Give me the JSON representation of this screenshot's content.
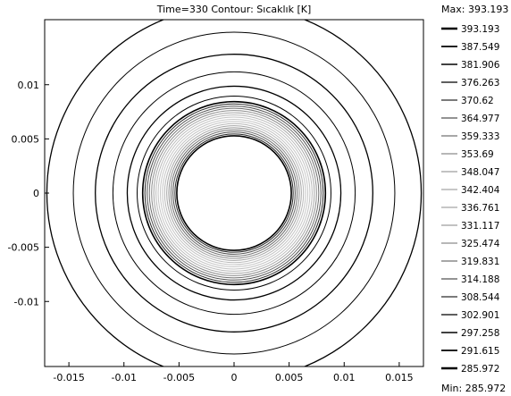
{
  "chart_data": {
    "type": "contour",
    "title": "Time=330    Contour: Sıcaklık [K]",
    "xlabel": "",
    "ylabel": "",
    "xlim": [
      -0.0172,
      0.0172
    ],
    "ylim": [
      -0.016,
      0.016
    ],
    "x_ticks": [
      {
        "value": -0.015,
        "label": "-0.015"
      },
      {
        "value": -0.01,
        "label": "-0.01"
      },
      {
        "value": -0.005,
        "label": "-0.005"
      },
      {
        "value": 0,
        "label": "0"
      },
      {
        "value": 0.005,
        "label": "0.005"
      },
      {
        "value": 0.01,
        "label": "0.01"
      },
      {
        "value": 0.015,
        "label": "0.015"
      }
    ],
    "y_ticks": [
      {
        "value": 0.01,
        "label": "0.01"
      },
      {
        "value": 0.005,
        "label": "0.005"
      },
      {
        "value": 0,
        "label": "0"
      },
      {
        "value": -0.005,
        "label": "-0.005"
      },
      {
        "value": -0.01,
        "label": "-0.01"
      }
    ],
    "grid": false,
    "max_label": "Max: 393.193",
    "min_label": "Min: 285.972",
    "legend_position": "right",
    "levels": [
      {
        "value": 393.193,
        "label": "393.193"
      },
      {
        "value": 387.549,
        "label": "387.549"
      },
      {
        "value": 381.906,
        "label": "381.906"
      },
      {
        "value": 376.263,
        "label": "376.263"
      },
      {
        "value": 370.62,
        "label": "370.62"
      },
      {
        "value": 364.977,
        "label": "364.977"
      },
      {
        "value": 359.333,
        "label": "359.333"
      },
      {
        "value": 353.69,
        "label": "353.69"
      },
      {
        "value": 348.047,
        "label": "348.047"
      },
      {
        "value": 342.404,
        "label": "342.404"
      },
      {
        "value": 336.761,
        "label": "336.761"
      },
      {
        "value": 331.117,
        "label": "331.117"
      },
      {
        "value": 325.474,
        "label": "325.474"
      },
      {
        "value": 319.831,
        "label": "319.831"
      },
      {
        "value": 314.188,
        "label": "314.188"
      },
      {
        "value": 308.544,
        "label": "308.544"
      },
      {
        "value": 302.901,
        "label": "302.901"
      },
      {
        "value": 297.258,
        "label": "297.258"
      },
      {
        "value": 291.615,
        "label": "291.615"
      },
      {
        "value": 285.972,
        "label": "285.972"
      }
    ],
    "inner_boundary_radius": 0.0052,
    "dense_band_radius_range": [
      0.0052,
      0.0083
    ],
    "outer_contour_radii": [
      0.0088,
      0.0097,
      0.011,
      0.0126,
      0.0146,
      0.017
    ],
    "colors": {
      "contour_dark": "#000000",
      "contour_light": "#c8c8c8",
      "background": "#ffffff"
    }
  }
}
